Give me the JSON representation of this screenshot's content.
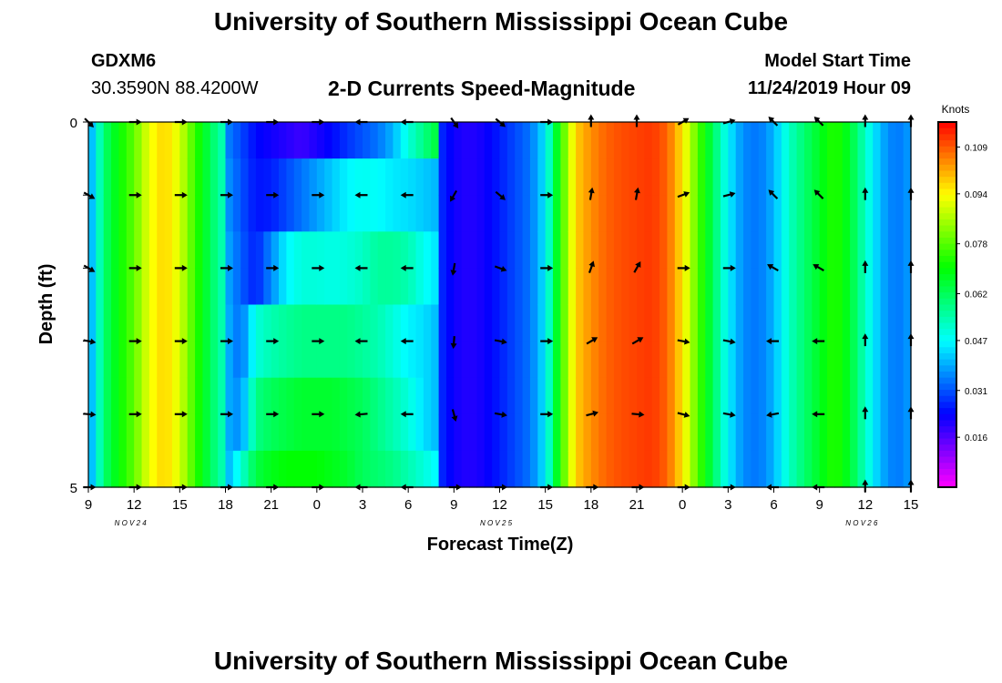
{
  "page": {
    "title_top": "University of Southern Mississippi Ocean Cube",
    "title_bottom": "University of Southern Mississippi Ocean Cube",
    "station_id": "GDXM6",
    "station_coords": "30.3590N 88.4200W",
    "subtitle": "2-D Currents Speed-Magnitude",
    "model_start_label": "Model Start Time",
    "model_start_value": "11/24/2019 Hour 09"
  },
  "chart_data": {
    "type": "heatmap",
    "title": "2-D Currents Speed-Magnitude",
    "xlabel": "Forecast Time(Z)",
    "ylabel": "Depth (ft)",
    "ylim": [
      0,
      5
    ],
    "y_ticks": [
      "0",
      "5"
    ],
    "x_tick_labels": [
      "9",
      "12",
      "15",
      "18",
      "21",
      "0",
      "3",
      "6",
      "9",
      "12",
      "15",
      "18",
      "21",
      "0",
      "3",
      "6",
      "9",
      "12",
      "15"
    ],
    "date_labels": [
      "NOV 24",
      "NOV 25",
      "NOV 26"
    ],
    "hours_from_start": 54,
    "colorbar": {
      "unit": "Knots",
      "ticks": [
        0.109,
        0.094,
        0.078,
        0.062,
        0.047,
        0.031,
        0.016
      ],
      "range": [
        0.0,
        0.117
      ]
    },
    "speed_profile_knots": [
      [
        0,
        0.035
      ],
      [
        1,
        0.06
      ],
      [
        2,
        0.07
      ],
      [
        3,
        0.079
      ],
      [
        4,
        0.092
      ],
      [
        5,
        0.098
      ],
      [
        6,
        0.09
      ],
      [
        7,
        0.075
      ],
      [
        8,
        0.062
      ],
      [
        9,
        0.052
      ],
      [
        10,
        0.043
      ],
      [
        11,
        0.033
      ],
      [
        12,
        0.025
      ],
      [
        13,
        0.018
      ],
      [
        14,
        0.01
      ],
      [
        15,
        0.006
      ],
      [
        16,
        0.008
      ],
      [
        17,
        0.014
      ],
      [
        18,
        0.024
      ],
      [
        19,
        0.034
      ],
      [
        20,
        0.04
      ],
      [
        21,
        0.044
      ],
      [
        22,
        0.038
      ],
      [
        23,
        0.028
      ],
      [
        24,
        0.022
      ],
      [
        25,
        0.02
      ],
      [
        26,
        0.022
      ],
      [
        27,
        0.026
      ],
      [
        28,
        0.03
      ],
      [
        29,
        0.034
      ],
      [
        30,
        0.045
      ],
      [
        31,
        0.074
      ],
      [
        32,
        0.098
      ],
      [
        33,
        0.104
      ],
      [
        34,
        0.108
      ],
      [
        35,
        0.11
      ],
      [
        36,
        0.111
      ],
      [
        37,
        0.112
      ],
      [
        38,
        0.108
      ],
      [
        39,
        0.096
      ],
      [
        40,
        0.078
      ],
      [
        41,
        0.062
      ],
      [
        42,
        0.046
      ],
      [
        43,
        0.036
      ],
      [
        44,
        0.034
      ],
      [
        45,
        0.04
      ],
      [
        46,
        0.052
      ],
      [
        47,
        0.06
      ],
      [
        48,
        0.067
      ],
      [
        49,
        0.074
      ],
      [
        50,
        0.066
      ],
      [
        51,
        0.052
      ],
      [
        52,
        0.04
      ],
      [
        53,
        0.034
      ],
      [
        54,
        0.038
      ]
    ],
    "depth_modifier_rows": [
      {
        "depth": 0.0,
        "values": [
          [
            9,
            0.036
          ],
          [
            10,
            0.03
          ],
          [
            11,
            0.024
          ],
          [
            12,
            0.022
          ],
          [
            13,
            0.02
          ],
          [
            14,
            0.018
          ],
          [
            15,
            0.021
          ],
          [
            16,
            0.024
          ],
          [
            17,
            0.028
          ],
          [
            18,
            0.031
          ],
          [
            19,
            0.034
          ],
          [
            20,
            0.04
          ],
          [
            21,
            0.05
          ],
          [
            22,
            0.058
          ],
          [
            23,
            0.066
          ]
        ]
      },
      {
        "depth": 0.5,
        "values": [
          [
            9,
            0.038
          ],
          [
            10,
            0.031
          ],
          [
            11,
            0.025
          ],
          [
            12,
            0.026
          ],
          [
            13,
            0.03
          ],
          [
            14,
            0.034
          ],
          [
            15,
            0.038
          ],
          [
            16,
            0.042
          ],
          [
            17,
            0.046
          ],
          [
            18,
            0.048
          ],
          [
            19,
            0.047
          ],
          [
            20,
            0.045
          ],
          [
            21,
            0.044
          ],
          [
            22,
            0.042
          ],
          [
            23,
            0.04
          ]
        ]
      },
      {
        "depth": 1.5,
        "values": [
          [
            9,
            0.04
          ],
          [
            10,
            0.032
          ],
          [
            11,
            0.026
          ],
          [
            12,
            0.036
          ],
          [
            13,
            0.046
          ],
          [
            14,
            0.05
          ],
          [
            15,
            0.05
          ],
          [
            16,
            0.049
          ],
          [
            17,
            0.05
          ],
          [
            18,
            0.052
          ],
          [
            19,
            0.056
          ],
          [
            20,
            0.056
          ],
          [
            21,
            0.054
          ],
          [
            22,
            0.048
          ],
          [
            23,
            0.044
          ]
        ]
      },
      {
        "depth": 2.5,
        "values": [
          [
            9,
            0.041
          ],
          [
            10,
            0.033
          ],
          [
            11,
            0.05
          ],
          [
            12,
            0.054
          ],
          [
            13,
            0.056
          ],
          [
            14,
            0.058
          ],
          [
            15,
            0.058
          ],
          [
            16,
            0.058
          ],
          [
            17,
            0.058
          ],
          [
            18,
            0.056
          ],
          [
            19,
            0.054
          ],
          [
            20,
            0.05
          ],
          [
            21,
            0.046
          ],
          [
            22,
            0.044
          ],
          [
            23,
            0.04
          ]
        ]
      },
      {
        "depth": 3.5,
        "values": [
          [
            9,
            0.04
          ],
          [
            10,
            0.036
          ],
          [
            11,
            0.058
          ],
          [
            12,
            0.062
          ],
          [
            13,
            0.064
          ],
          [
            14,
            0.066
          ],
          [
            15,
            0.066
          ],
          [
            16,
            0.066
          ],
          [
            17,
            0.064
          ],
          [
            18,
            0.062
          ],
          [
            19,
            0.058
          ],
          [
            20,
            0.054
          ],
          [
            21,
            0.05
          ],
          [
            22,
            0.044
          ],
          [
            23,
            0.04
          ]
        ]
      },
      {
        "depth": 4.5,
        "values": [
          [
            9,
            0.038
          ],
          [
            10,
            0.05
          ],
          [
            11,
            0.064
          ],
          [
            12,
            0.068
          ],
          [
            13,
            0.07
          ],
          [
            14,
            0.07
          ],
          [
            15,
            0.07
          ],
          [
            16,
            0.068
          ],
          [
            17,
            0.066
          ],
          [
            18,
            0.062
          ],
          [
            19,
            0.06
          ],
          [
            20,
            0.058
          ],
          [
            21,
            0.054
          ],
          [
            22,
            0.05
          ],
          [
            23,
            0.046
          ]
        ]
      }
    ],
    "vector_depths": [
      0,
      1,
      2,
      3,
      4,
      5
    ],
    "vector_direction_columns": [
      {
        "hour": 0,
        "dir": [
          135,
          120,
          120,
          100,
          95,
          90
        ]
      },
      {
        "hour": 3,
        "dir": [
          90,
          90,
          90,
          90,
          90,
          90
        ]
      },
      {
        "hour": 6,
        "dir": [
          90,
          90,
          90,
          90,
          90,
          90
        ]
      },
      {
        "hour": 9,
        "dir": [
          90,
          90,
          90,
          90,
          90,
          90
        ]
      },
      {
        "hour": 12,
        "dir": [
          90,
          90,
          90,
          90,
          90,
          90
        ]
      },
      {
        "hour": 15,
        "dir": [
          90,
          90,
          90,
          90,
          90,
          90
        ]
      },
      {
        "hour": 18,
        "dir": [
          270,
          270,
          270,
          270,
          265,
          270
        ]
      },
      {
        "hour": 21,
        "dir": [
          270,
          270,
          270,
          270,
          270,
          270
        ]
      },
      {
        "hour": 24,
        "dir": [
          145,
          210,
          190,
          185,
          165,
          90
        ]
      },
      {
        "hour": 27,
        "dir": [
          130,
          130,
          110,
          100,
          100,
          90
        ]
      },
      {
        "hour": 30,
        "dir": [
          90,
          90,
          90,
          90,
          90,
          90
        ]
      },
      {
        "hour": 33,
        "dir": [
          0,
          10,
          20,
          60,
          75,
          90
        ]
      },
      {
        "hour": 36,
        "dir": [
          0,
          10,
          30,
          60,
          95,
          90
        ]
      },
      {
        "hour": 39,
        "dir": [
          60,
          70,
          90,
          100,
          105,
          90
        ]
      },
      {
        "hour": 42,
        "dir": [
          75,
          75,
          90,
          100,
          100,
          90
        ]
      },
      {
        "hour": 45,
        "dir": [
          315,
          315,
          300,
          270,
          260,
          270
        ]
      },
      {
        "hour": 48,
        "dir": [
          315,
          315,
          300,
          270,
          270,
          270
        ]
      },
      {
        "hour": 51,
        "dir": [
          0,
          0,
          0,
          0,
          0,
          0
        ]
      },
      {
        "hour": 54,
        "dir": [
          0,
          0,
          0,
          0,
          0,
          0
        ]
      }
    ],
    "grid": false,
    "legend": "right"
  }
}
